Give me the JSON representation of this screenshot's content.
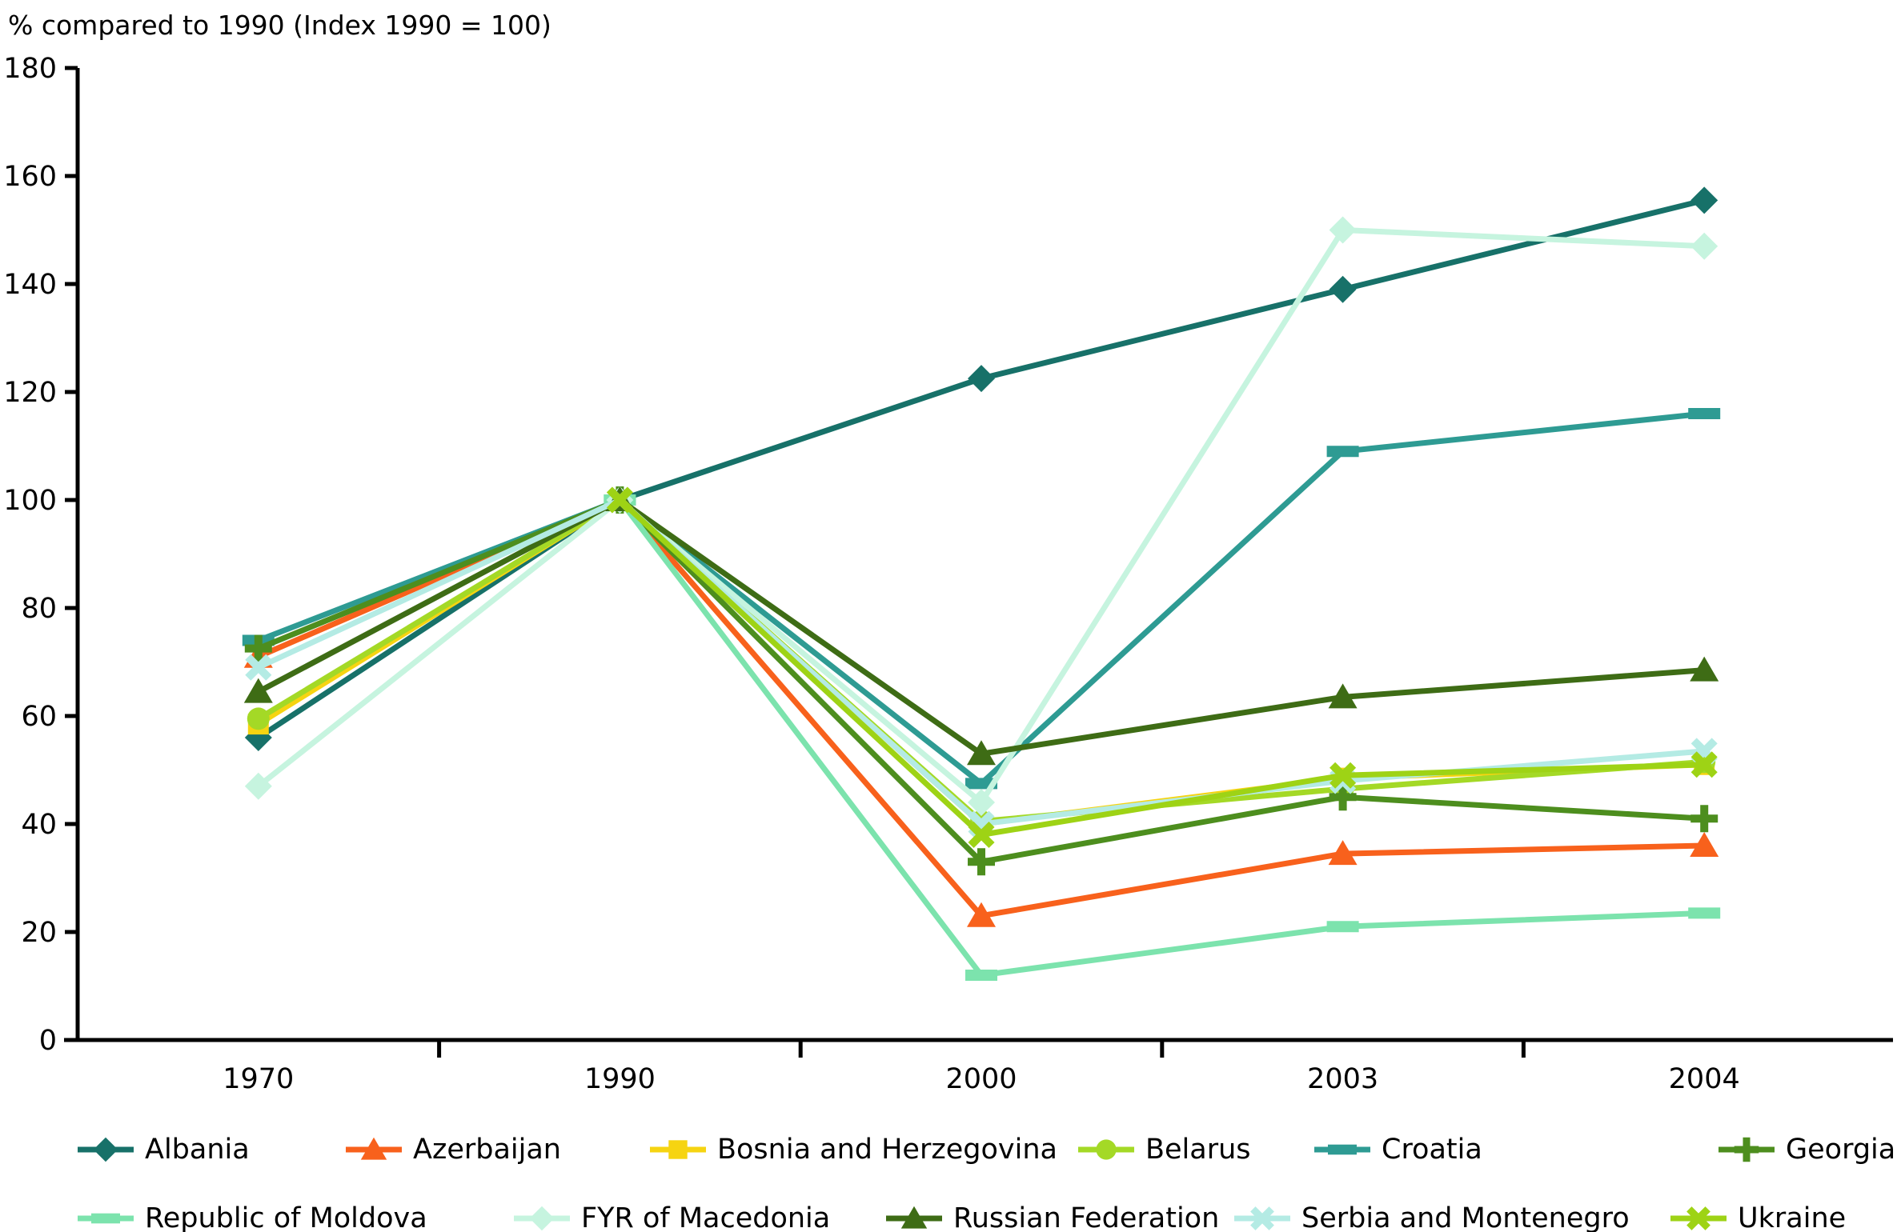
{
  "chart_data": {
    "type": "line",
    "title": "% compared to 1990 (Index 1990 = 100)",
    "categories": [
      "1970",
      "1990",
      "2000",
      "2003",
      "2004"
    ],
    "y_axis": {
      "min": 0,
      "max": 180,
      "step": 20
    },
    "grid": false,
    "legend_position": "bottom",
    "series": [
      {
        "name": "Albania",
        "color": "#177169",
        "marker": "diamond",
        "values": [
          56,
          100,
          122.5,
          139,
          155.5
        ]
      },
      {
        "name": "Azerbaijan",
        "color": "#f8611c",
        "marker": "triangle",
        "values": [
          71,
          100,
          23,
          34.5,
          36
        ]
      },
      {
        "name": "Bosnia and Herzegovina",
        "color": "#f6d411",
        "marker": "square",
        "values": [
          58.5,
          100,
          40,
          48.5,
          51
        ]
      },
      {
        "name": "Belarus",
        "color": "#a4d926",
        "marker": "circle",
        "values": [
          59.5,
          100,
          40.5,
          46.5,
          51.5
        ]
      },
      {
        "name": "Croatia",
        "color": "#2e9b93",
        "marker": "dash",
        "values": [
          74,
          100,
          47.5,
          109,
          116
        ]
      },
      {
        "name": "Georgia",
        "color": "#4d8e1e",
        "marker": "plus",
        "values": [
          72.5,
          100,
          33,
          45,
          41
        ]
      },
      {
        "name": "Republic of Moldova",
        "color": "#7ce3ad",
        "marker": "dash",
        "values": [
          null,
          100,
          12,
          21,
          23.5
        ]
      },
      {
        "name": "FYR of Macedonia",
        "color": "#c6f4df",
        "marker": "diamond",
        "values": [
          47,
          100,
          44,
          150,
          147
        ]
      },
      {
        "name": "Russian Federation",
        "color": "#3e6c15",
        "marker": "triangle",
        "values": [
          64.5,
          100,
          53,
          63.5,
          68.5
        ]
      },
      {
        "name": "Serbia and Montenegro",
        "color": "#b4ebe4",
        "marker": "x",
        "values": [
          69,
          100,
          40,
          48,
          53.5
        ]
      },
      {
        "name": "Ukraine",
        "color": "#9ed315",
        "marker": "x",
        "values": [
          null,
          100,
          38,
          49,
          51
        ]
      }
    ],
    "legend_rows": [
      [
        "Albania",
        "Azerbaijan",
        "Bosnia and Herzegovina",
        "Belarus",
        "Croatia",
        "Georgia"
      ],
      [
        "Republic of Moldova",
        "FYR of Macedonia",
        "Russian Federation",
        "Serbia and Montenegro",
        "Ukraine"
      ]
    ]
  }
}
